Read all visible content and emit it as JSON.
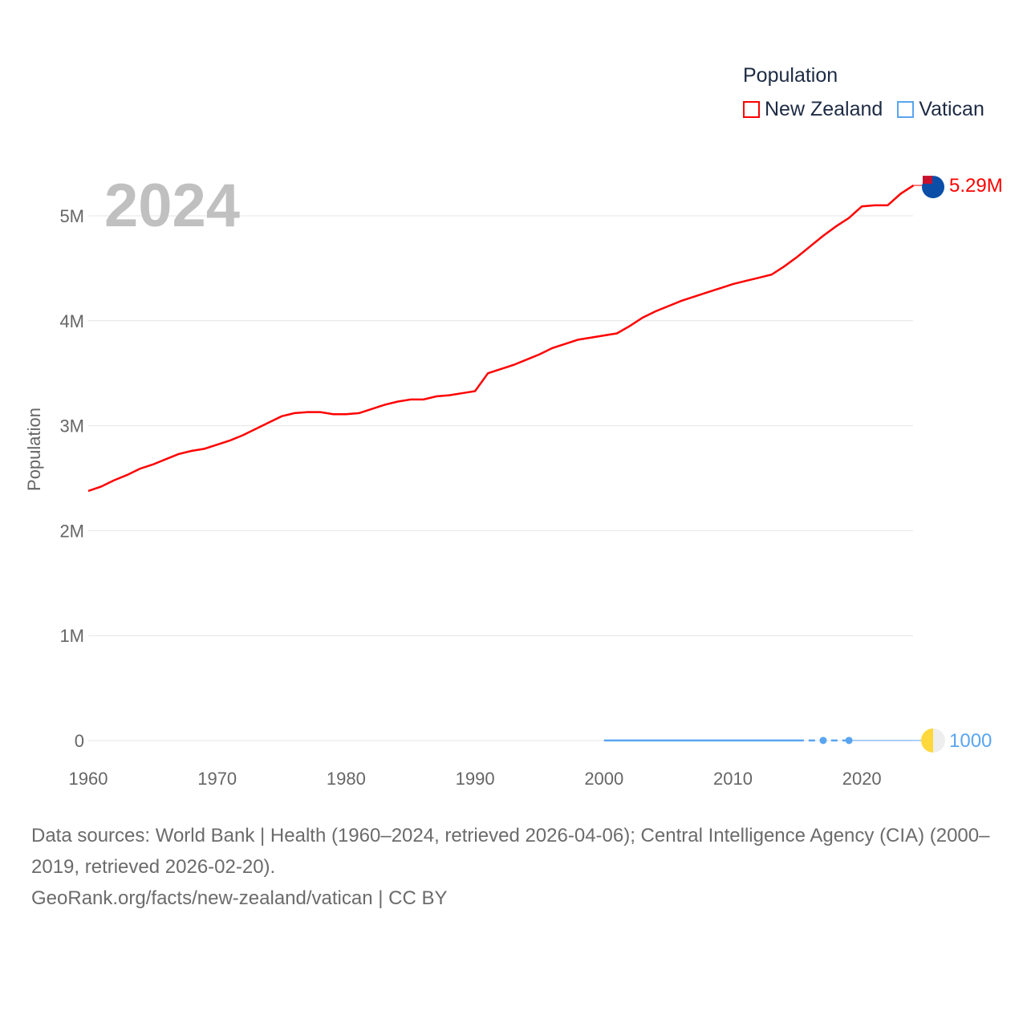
{
  "chart_data": {
    "type": "line",
    "title": "Population",
    "year_label": "2024",
    "ylabel": "Population",
    "xlabel": "",
    "xlim": [
      1960,
      2024
    ],
    "ylim": [
      0,
      5500000
    ],
    "x_ticks": [
      "1960",
      "1970",
      "1980",
      "1990",
      "2000",
      "2010",
      "2020"
    ],
    "y_ticks": [
      {
        "value": 0,
        "label": "0"
      },
      {
        "value": 1000000,
        "label": "1M"
      },
      {
        "value": 2000000,
        "label": "2M"
      },
      {
        "value": 3000000,
        "label": "3M"
      },
      {
        "value": 4000000,
        "label": "4M"
      },
      {
        "value": 5000000,
        "label": "5M"
      }
    ],
    "grid": true,
    "legend": {
      "title": "Population",
      "placement": "top-right"
    },
    "series": [
      {
        "name": "New Zealand",
        "color": "#ff0000",
        "end_label": "5.29M",
        "flag": "new-zealand-flag",
        "x": [
          1960,
          1961,
          1962,
          1963,
          1964,
          1965,
          1966,
          1967,
          1968,
          1969,
          1970,
          1971,
          1972,
          1973,
          1974,
          1975,
          1976,
          1977,
          1978,
          1979,
          1980,
          1981,
          1982,
          1983,
          1984,
          1985,
          1986,
          1987,
          1988,
          1989,
          1990,
          1991,
          1992,
          1993,
          1994,
          1995,
          1996,
          1997,
          1998,
          1999,
          2000,
          2001,
          2002,
          2003,
          2004,
          2005,
          2006,
          2007,
          2008,
          2009,
          2010,
          2011,
          2012,
          2013,
          2014,
          2015,
          2016,
          2017,
          2018,
          2019,
          2020,
          2021,
          2022,
          2023,
          2024
        ],
        "values": [
          2378000,
          2420000,
          2480000,
          2530000,
          2590000,
          2630000,
          2680000,
          2730000,
          2760000,
          2780000,
          2820000,
          2860000,
          2910000,
          2970000,
          3030000,
          3090000,
          3120000,
          3130000,
          3130000,
          3110000,
          3110000,
          3120000,
          3160000,
          3200000,
          3230000,
          3250000,
          3250000,
          3280000,
          3290000,
          3310000,
          3330000,
          3500000,
          3540000,
          3580000,
          3630000,
          3680000,
          3740000,
          3780000,
          3820000,
          3840000,
          3860000,
          3880000,
          3950000,
          4030000,
          4090000,
          4140000,
          4190000,
          4230000,
          4270000,
          4310000,
          4350000,
          4380000,
          4410000,
          4440000,
          4520000,
          4610000,
          4710000,
          4810000,
          4900000,
          4980000,
          5090000,
          5100000,
          5100000,
          5210000,
          5290000
        ]
      },
      {
        "name": "Vatican",
        "color": "#5aa5ef",
        "end_label": "1000",
        "flag": "vatican-flag",
        "x": [
          2000,
          2005,
          2010,
          2015,
          2017,
          2019
        ],
        "values": [
          880,
          890,
          830,
          840,
          1000,
          1000
        ],
        "dashed_from": 2015,
        "markers": [
          2017,
          2019
        ]
      }
    ]
  },
  "sources": {
    "line1": "Data sources: World Bank | Health (1960–2024, retrieved 2026-04-06); Central Intelligence Agency (CIA) (2000–2019, retrieved 2026-02-20).",
    "line2": "GeoRank.org/facts/new-zealand/vatican | CC BY"
  }
}
